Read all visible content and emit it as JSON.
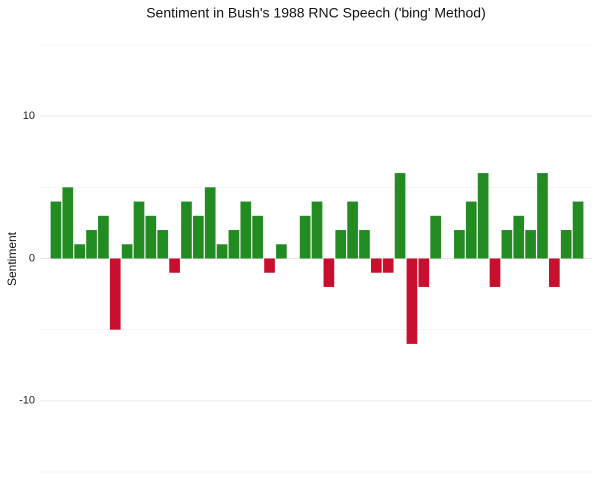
{
  "chart_data": {
    "type": "bar",
    "title": "Sentiment in Bush's 1988 RNC Speech ('bing' Method)",
    "y_label": "Sentiment",
    "values": [
      4,
      5,
      1,
      2,
      3,
      -5,
      1,
      4,
      3,
      2,
      -1,
      4,
      3,
      5,
      1,
      2,
      4,
      3,
      -1,
      1,
      0,
      3,
      4,
      -2,
      2,
      4,
      2,
      -1,
      -1,
      6,
      -6,
      -2,
      3,
      0,
      2,
      4,
      6,
      -2,
      2,
      3,
      2,
      6,
      -2,
      2,
      4
    ],
    "positive_color": "#228b22",
    "negative_color": "#c8102e",
    "ylim": [
      -15,
      15
    ],
    "yticks": [
      -10,
      0,
      10
    ],
    "minor_yticks": [
      -15,
      -5,
      5,
      15
    ],
    "grid": true
  }
}
